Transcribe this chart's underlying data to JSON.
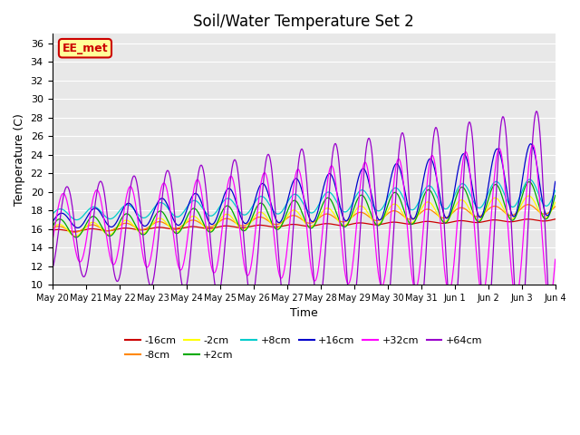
{
  "title": "Soil/Water Temperature Set 2",
  "xlabel": "Time",
  "ylabel": "Temperature (C)",
  "ylim": [
    10,
    37
  ],
  "yticks": [
    10,
    12,
    14,
    16,
    18,
    20,
    22,
    24,
    26,
    28,
    30,
    32,
    34,
    36
  ],
  "bg_color": "#e8e8e8",
  "series": [
    {
      "label": "-16cm",
      "color": "#cc0000"
    },
    {
      "label": "-8cm",
      "color": "#ff8800"
    },
    {
      "label": "-2cm",
      "color": "#ffff00"
    },
    {
      "label": "+2cm",
      "color": "#00aa00"
    },
    {
      "label": "+8cm",
      "color": "#00cccc"
    },
    {
      "label": "+16cm",
      "color": "#0000cc"
    },
    {
      "label": "+32cm",
      "color": "#ff00ff"
    },
    {
      "label": "+64cm",
      "color": "#9900cc"
    }
  ],
  "xtick_labels": [
    "May 20",
    "May 21",
    "May 22",
    "May 23",
    "May 24",
    "May 25",
    "May 26",
    "May 27",
    "May 28",
    "May 29",
    "May 30",
    "May 31",
    "Jun 1",
    "Jun 2",
    "Jun 3",
    "Jun 4"
  ],
  "annotation_text": "EE_met",
  "annotation_color": "#cc0000",
  "annotation_bg": "#ffff99",
  "annotation_border": "#cc0000"
}
